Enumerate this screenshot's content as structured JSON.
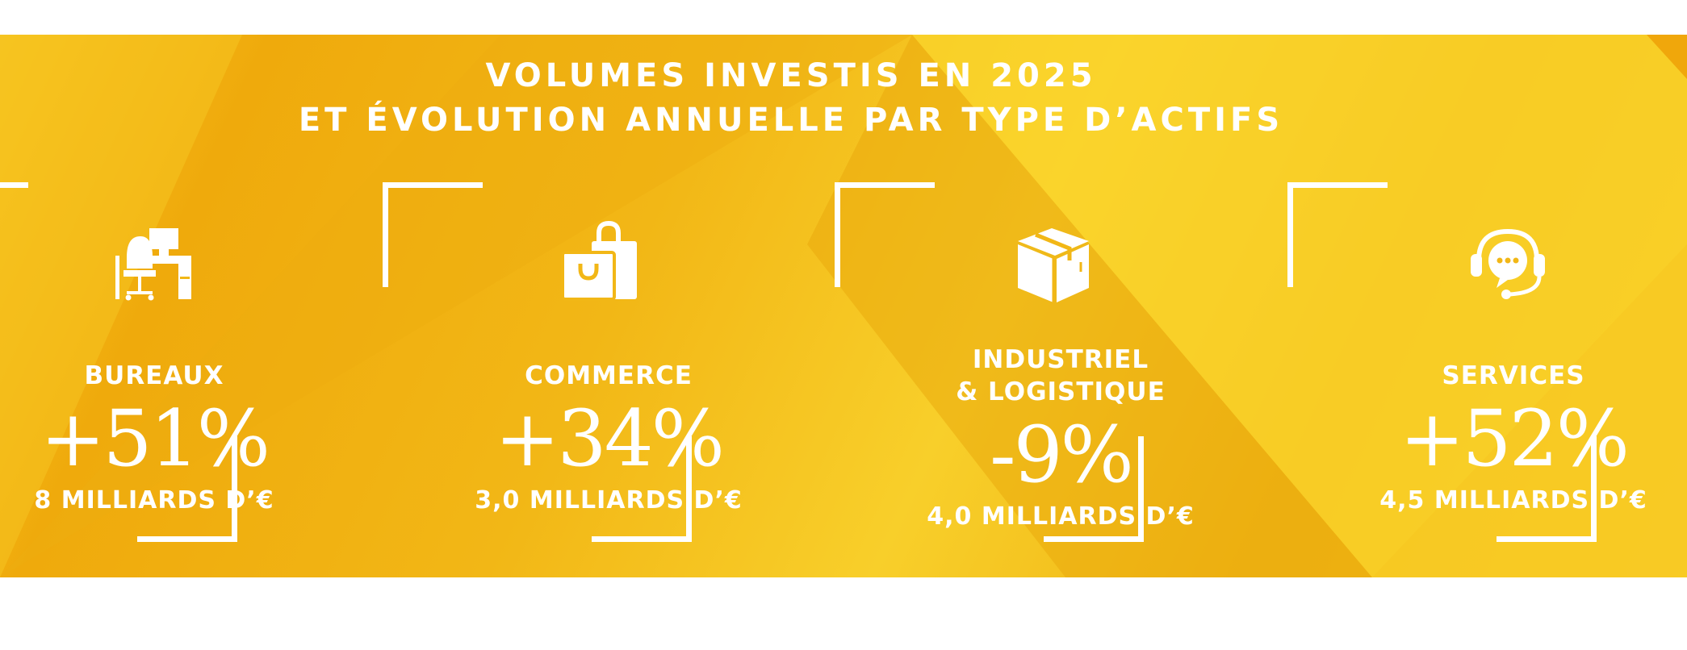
{
  "title": {
    "line1": "VOLUMES INVESTIS EN 2025",
    "line2": "ET ÉVOLUTION ANNUELLE PAR TYPE D’ACTIFS"
  },
  "colors": {
    "background": "#f2b716",
    "text": "#ffffff"
  },
  "categories": [
    {
      "icon": "office-desk-icon",
      "label_line1": "BUREAUX",
      "label_line2": "",
      "change": "+51%",
      "amount": "8 MILLIARDS D’€"
    },
    {
      "icon": "shopping-bag-icon",
      "label_line1": "COMMERCE",
      "label_line2": "",
      "change": "+34%",
      "amount": "3,0 MILLIARDS D’€"
    },
    {
      "icon": "package-box-icon",
      "label_line1": "INDUSTRIEL",
      "label_line2": "& LOGISTIQUE",
      "change": "-9%",
      "amount": "4,0 MILLIARDS D’€"
    },
    {
      "icon": "headset-chat-icon",
      "label_line1": "SERVICES",
      "label_line2": "",
      "change": "+52%",
      "amount": "4,5 MILLIARDS D’€"
    }
  ]
}
